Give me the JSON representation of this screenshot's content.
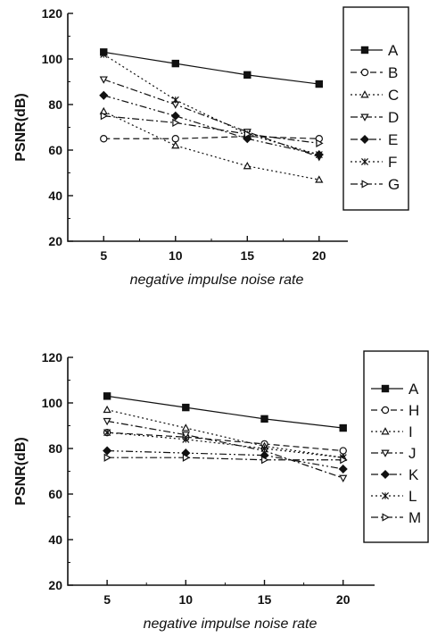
{
  "chart_data": [
    {
      "type": "line",
      "xlabel": "negative impulse noise rate",
      "ylabel": "PSNR(dB)",
      "x": [
        5,
        10,
        15,
        20
      ],
      "xticks": [
        5,
        10,
        15,
        20
      ],
      "xlim": [
        2.5,
        22
      ],
      "ylim": [
        20,
        120
      ],
      "yticks": [
        20,
        40,
        60,
        80,
        100,
        120
      ],
      "grid": false,
      "legend_position": "right",
      "series": [
        {
          "name": "A",
          "values": [
            103,
            98,
            93,
            89
          ],
          "marker": "square-filled",
          "dash": "solid"
        },
        {
          "name": "B",
          "values": [
            65,
            65,
            66,
            65
          ],
          "marker": "circle-open",
          "dash": "dashed"
        },
        {
          "name": "C",
          "values": [
            77,
            62,
            53,
            47
          ],
          "marker": "triangle-up-open",
          "dash": "dotted"
        },
        {
          "name": "D",
          "values": [
            91,
            80,
            68,
            57
          ],
          "marker": "triangle-down-open",
          "dash": "dashdot"
        },
        {
          "name": "E",
          "values": [
            84,
            75,
            65,
            58
          ],
          "marker": "diamond-filled",
          "dash": "dashdotdot"
        },
        {
          "name": "F",
          "values": [
            102,
            82,
            67,
            58
          ],
          "marker": "x",
          "dash": "dotted"
        },
        {
          "name": "G",
          "values": [
            75,
            72,
            67,
            63
          ],
          "marker": "triangle-right-open",
          "dash": "dashdot"
        }
      ]
    },
    {
      "type": "line",
      "xlabel": "negative impulse noise rate",
      "ylabel": "PSNR(dB)",
      "x": [
        5,
        10,
        15,
        20
      ],
      "xticks": [
        5,
        10,
        15,
        20
      ],
      "xlim": [
        2.5,
        22
      ],
      "ylim": [
        20,
        120
      ],
      "yticks": [
        20,
        40,
        60,
        80,
        100,
        120
      ],
      "grid": false,
      "legend_position": "right",
      "series": [
        {
          "name": "A",
          "values": [
            103,
            98,
            93,
            89
          ],
          "marker": "square-filled",
          "dash": "solid"
        },
        {
          "name": "H",
          "values": [
            87,
            85,
            82,
            79
          ],
          "marker": "circle-open",
          "dash": "dashed"
        },
        {
          "name": "I",
          "values": [
            97,
            89,
            81,
            76
          ],
          "marker": "triangle-up-open",
          "dash": "dotted"
        },
        {
          "name": "J",
          "values": [
            92,
            86,
            79,
            67
          ],
          "marker": "triangle-down-open",
          "dash": "dashdot"
        },
        {
          "name": "K",
          "values": [
            79,
            78,
            77,
            71
          ],
          "marker": "diamond-filled",
          "dash": "dashdotdot"
        },
        {
          "name": "L",
          "values": [
            87,
            84,
            80,
            76
          ],
          "marker": "x",
          "dash": "dotted"
        },
        {
          "name": "M",
          "values": [
            76,
            76,
            75,
            75
          ],
          "marker": "triangle-right-open",
          "dash": "dashdot"
        }
      ]
    }
  ]
}
